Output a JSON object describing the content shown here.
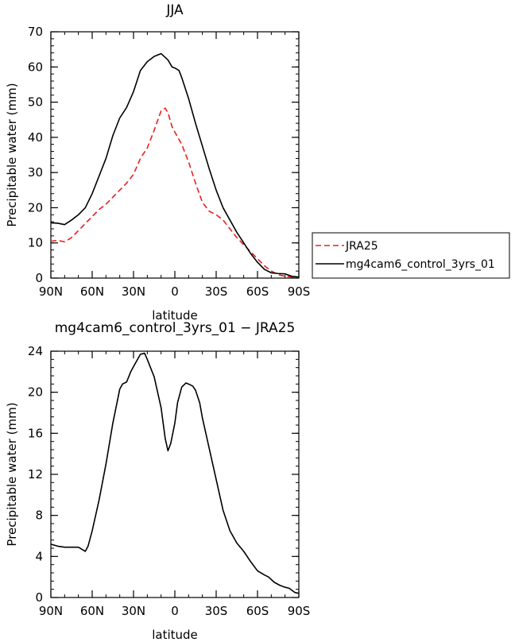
{
  "chart_data": [
    {
      "type": "line",
      "title": "JJA",
      "xlabel": "latitude",
      "ylabel": "Precipitable water (mm)",
      "xlim": [
        90,
        -90
      ],
      "ylim": [
        0,
        70
      ],
      "x_ticks": [
        90,
        60,
        30,
        0,
        -30,
        -60,
        -90
      ],
      "x_tick_labels": [
        "90N",
        "60N",
        "30N",
        "0",
        "30S",
        "60S",
        "90S"
      ],
      "y_ticks": [
        0,
        10,
        20,
        30,
        40,
        50,
        60,
        70
      ],
      "y_tick_labels": [
        "0",
        "10",
        "20",
        "30",
        "40",
        "50",
        "60",
        "70"
      ],
      "legend_placement": "right",
      "series": [
        {
          "name": "JRA25",
          "color": "#e8201c",
          "style": "dashed",
          "points": [
            [
              90,
              10.5
            ],
            [
              85,
              10.7
            ],
            [
              80,
              10.3
            ],
            [
              75,
              11.5
            ],
            [
              70,
              13.5
            ],
            [
              65,
              15.5
            ],
            [
              60,
              17.5
            ],
            [
              55,
              19.5
            ],
            [
              50,
              21
            ],
            [
              45,
              23
            ],
            [
              40,
              25
            ],
            [
              35,
              27
            ],
            [
              30,
              29.5
            ],
            [
              25,
              34
            ],
            [
              20,
              37
            ],
            [
              15,
              42
            ],
            [
              10,
              47.5
            ],
            [
              7,
              48.3
            ],
            [
              5,
              47
            ],
            [
              2,
              43
            ],
            [
              0,
              41.5
            ],
            [
              -5,
              38
            ],
            [
              -10,
              33
            ],
            [
              -15,
              27
            ],
            [
              -20,
              21.5
            ],
            [
              -25,
              19
            ],
            [
              -30,
              18
            ],
            [
              -35,
              16.5
            ],
            [
              -40,
              14
            ],
            [
              -45,
              11.5
            ],
            [
              -50,
              9.5
            ],
            [
              -55,
              7.5
            ],
            [
              -60,
              5.5
            ],
            [
              -65,
              3.5
            ],
            [
              -70,
              2
            ],
            [
              -75,
              1
            ],
            [
              -80,
              0.5
            ],
            [
              -85,
              0.3
            ],
            [
              -90,
              0.2
            ]
          ]
        },
        {
          "name": "mg4cam6_control_3yrs_01",
          "color": "#000000",
          "style": "solid",
          "points": [
            [
              90,
              15.7
            ],
            [
              85,
              15.6
            ],
            [
              80,
              15.2
            ],
            [
              75,
              16.5
            ],
            [
              70,
              18
            ],
            [
              65,
              20
            ],
            [
              60,
              24
            ],
            [
              55,
              29
            ],
            [
              50,
              34
            ],
            [
              45,
              40.5
            ],
            [
              40,
              45.5
            ],
            [
              35,
              48.5
            ],
            [
              30,
              53
            ],
            [
              25,
              59
            ],
            [
              20,
              61.5
            ],
            [
              15,
              63
            ],
            [
              10,
              63.8
            ],
            [
              5,
              62
            ],
            [
              2,
              60
            ],
            [
              0,
              59.7
            ],
            [
              -3,
              59
            ],
            [
              -5,
              57
            ],
            [
              -10,
              51
            ],
            [
              -15,
              44
            ],
            [
              -20,
              37.5
            ],
            [
              -25,
              31
            ],
            [
              -30,
              25
            ],
            [
              -35,
              20
            ],
            [
              -40,
              16.5
            ],
            [
              -45,
              13
            ],
            [
              -50,
              10
            ],
            [
              -55,
              7
            ],
            [
              -60,
              4.5
            ],
            [
              -65,
              2.5
            ],
            [
              -70,
              1.5
            ],
            [
              -75,
              1.3
            ],
            [
              -80,
              1.2
            ],
            [
              -85,
              0.5
            ],
            [
              -90,
              0.3
            ]
          ]
        }
      ]
    },
    {
      "type": "line",
      "title": "mg4cam6_control_3yrs_01 − JRA25",
      "xlabel": "latitude",
      "ylabel": "Precipitable water (mm)",
      "xlim": [
        90,
        -90
      ],
      "ylim": [
        0,
        24
      ],
      "x_ticks": [
        90,
        60,
        30,
        0,
        -30,
        -60,
        -90
      ],
      "x_tick_labels": [
        "90N",
        "60N",
        "30N",
        "0",
        "30S",
        "60S",
        "90S"
      ],
      "y_ticks": [
        0,
        4,
        8,
        12,
        16,
        20,
        24
      ],
      "y_tick_labels": [
        "0",
        "4",
        "8",
        "12",
        "16",
        "20",
        "24"
      ],
      "series": [
        {
          "color": "#000000",
          "style": "solid",
          "points": [
            [
              90,
              5.2
            ],
            [
              85,
              5
            ],
            [
              80,
              4.9
            ],
            [
              75,
              4.9
            ],
            [
              70,
              4.9
            ],
            [
              65,
              4.5
            ],
            [
              63,
              5
            ],
            [
              60,
              6.5
            ],
            [
              55,
              9.5
            ],
            [
              50,
              13
            ],
            [
              45,
              17
            ],
            [
              40,
              20.3
            ],
            [
              38,
              20.8
            ],
            [
              35,
              21
            ],
            [
              32,
              22
            ],
            [
              30,
              22.5
            ],
            [
              25,
              23.7
            ],
            [
              22,
              23.8
            ],
            [
              20,
              23.2
            ],
            [
              15,
              21.5
            ],
            [
              10,
              18.5
            ],
            [
              7,
              15.5
            ],
            [
              5,
              14.3
            ],
            [
              3,
              15
            ],
            [
              0,
              17
            ],
            [
              -2,
              19
            ],
            [
              -5,
              20.5
            ],
            [
              -8,
              20.9
            ],
            [
              -10,
              20.8
            ],
            [
              -13,
              20.6
            ],
            [
              -15,
              20.2
            ],
            [
              -18,
              19
            ],
            [
              -20,
              17.5
            ],
            [
              -25,
              14.5
            ],
            [
              -30,
              11.5
            ],
            [
              -35,
              8.5
            ],
            [
              -40,
              6.5
            ],
            [
              -45,
              5.3
            ],
            [
              -50,
              4.5
            ],
            [
              -55,
              3.5
            ],
            [
              -60,
              2.6
            ],
            [
              -65,
              2.2
            ],
            [
              -68,
              2
            ],
            [
              -72,
              1.5
            ],
            [
              -76,
              1.2
            ],
            [
              -80,
              1
            ],
            [
              -83,
              0.9
            ],
            [
              -87,
              0.5
            ],
            [
              -90,
              0.4
            ]
          ]
        }
      ]
    }
  ]
}
